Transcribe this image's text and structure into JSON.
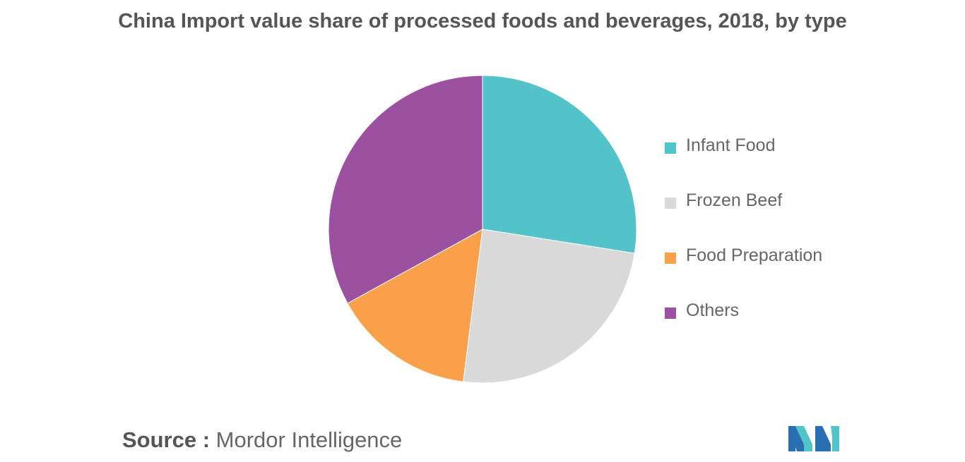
{
  "chart_data": {
    "type": "pie",
    "title": "China Import value share of processed foods and beverages, 2018, by type",
    "slices": [
      {
        "label": "Infant Food",
        "value": 27.5,
        "color": "#52c4c9"
      },
      {
        "label": "Frozen Beef",
        "value": 24.5,
        "color": "#d9d9d9"
      },
      {
        "label": "Food Preparation",
        "value": 15.0,
        "color": "#fba04a"
      },
      {
        "label": "Others",
        "value": 33.0,
        "color": "#9b51a0"
      }
    ],
    "start_angle": "12 o'clock",
    "direction": "clockwise",
    "data_labels": false,
    "legend_position": "right"
  },
  "source": {
    "label": "Source :",
    "value": "Mordor Intelligence"
  },
  "logo": {
    "name": "mordor-intelligence-logo",
    "colors": [
      "#2b6fb3",
      "#52c4c9"
    ]
  }
}
